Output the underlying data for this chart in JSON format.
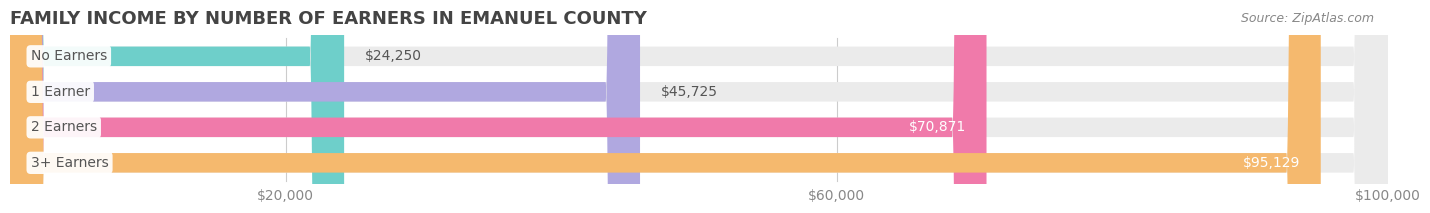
{
  "title": "FAMILY INCOME BY NUMBER OF EARNERS IN EMANUEL COUNTY",
  "source": "Source: ZipAtlas.com",
  "categories": [
    "No Earners",
    "1 Earner",
    "2 Earners",
    "3+ Earners"
  ],
  "values": [
    24250,
    45725,
    70871,
    95129
  ],
  "bar_colors": [
    "#6ecfca",
    "#b0a8e0",
    "#f07aaa",
    "#f5b96e"
  ],
  "bar_bg_color": "#f0f0f0",
  "background_color": "#ffffff",
  "xlim": [
    0,
    100000
  ],
  "xticks": [
    20000,
    60000,
    100000
  ],
  "xtick_labels": [
    "$20,000",
    "$60,000",
    "$100,000"
  ],
  "label_fontsize": 10,
  "value_fontsize": 10,
  "title_fontsize": 13,
  "bar_height": 0.55
}
